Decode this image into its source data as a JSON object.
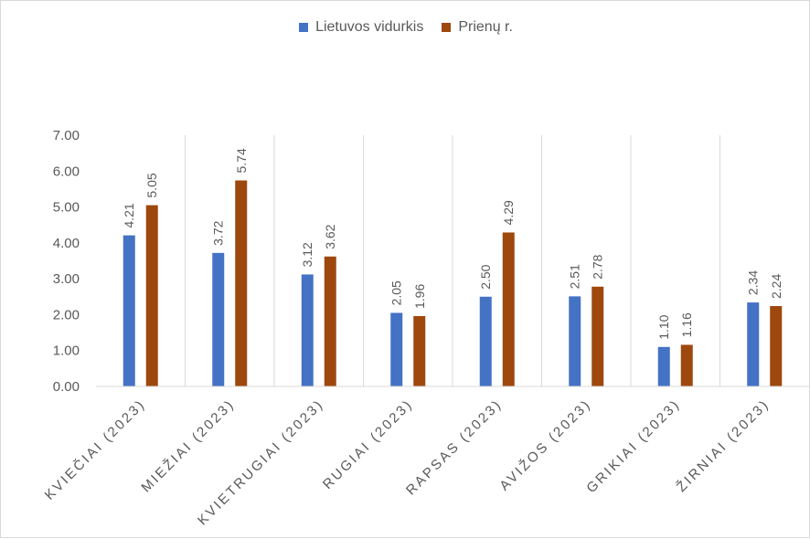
{
  "chart_data": {
    "type": "bar",
    "categories": [
      "KVIEČIAI (2023)",
      "MIEŽIAI (2023)",
      "KVIETRUGIAI (2023)",
      "RUGIAI (2023)",
      "RAPSAS (2023)",
      "AVIŽOS (2023)",
      "GRIKIAI (2023)",
      "ŽIRNIAI (2023)"
    ],
    "series": [
      {
        "name": "Lietuvos vidurkis",
        "color": "#4472C4",
        "values": [
          4.21,
          3.72,
          3.12,
          2.05,
          2.5,
          2.51,
          1.1,
          2.34
        ]
      },
      {
        "name": "Prienų r.",
        "color": "#9E480E",
        "values": [
          5.05,
          5.74,
          3.62,
          1.96,
          4.29,
          2.78,
          1.16,
          2.24
        ]
      }
    ],
    "yticks": [
      "0.00",
      "1.00",
      "2.00",
      "3.00",
      "4.00",
      "5.00",
      "6.00",
      "7.00"
    ],
    "ylim": [
      0,
      7
    ],
    "title": "",
    "xlabel": "",
    "ylabel": "",
    "legend_position": "top-center",
    "grid": "vertical category separators"
  }
}
